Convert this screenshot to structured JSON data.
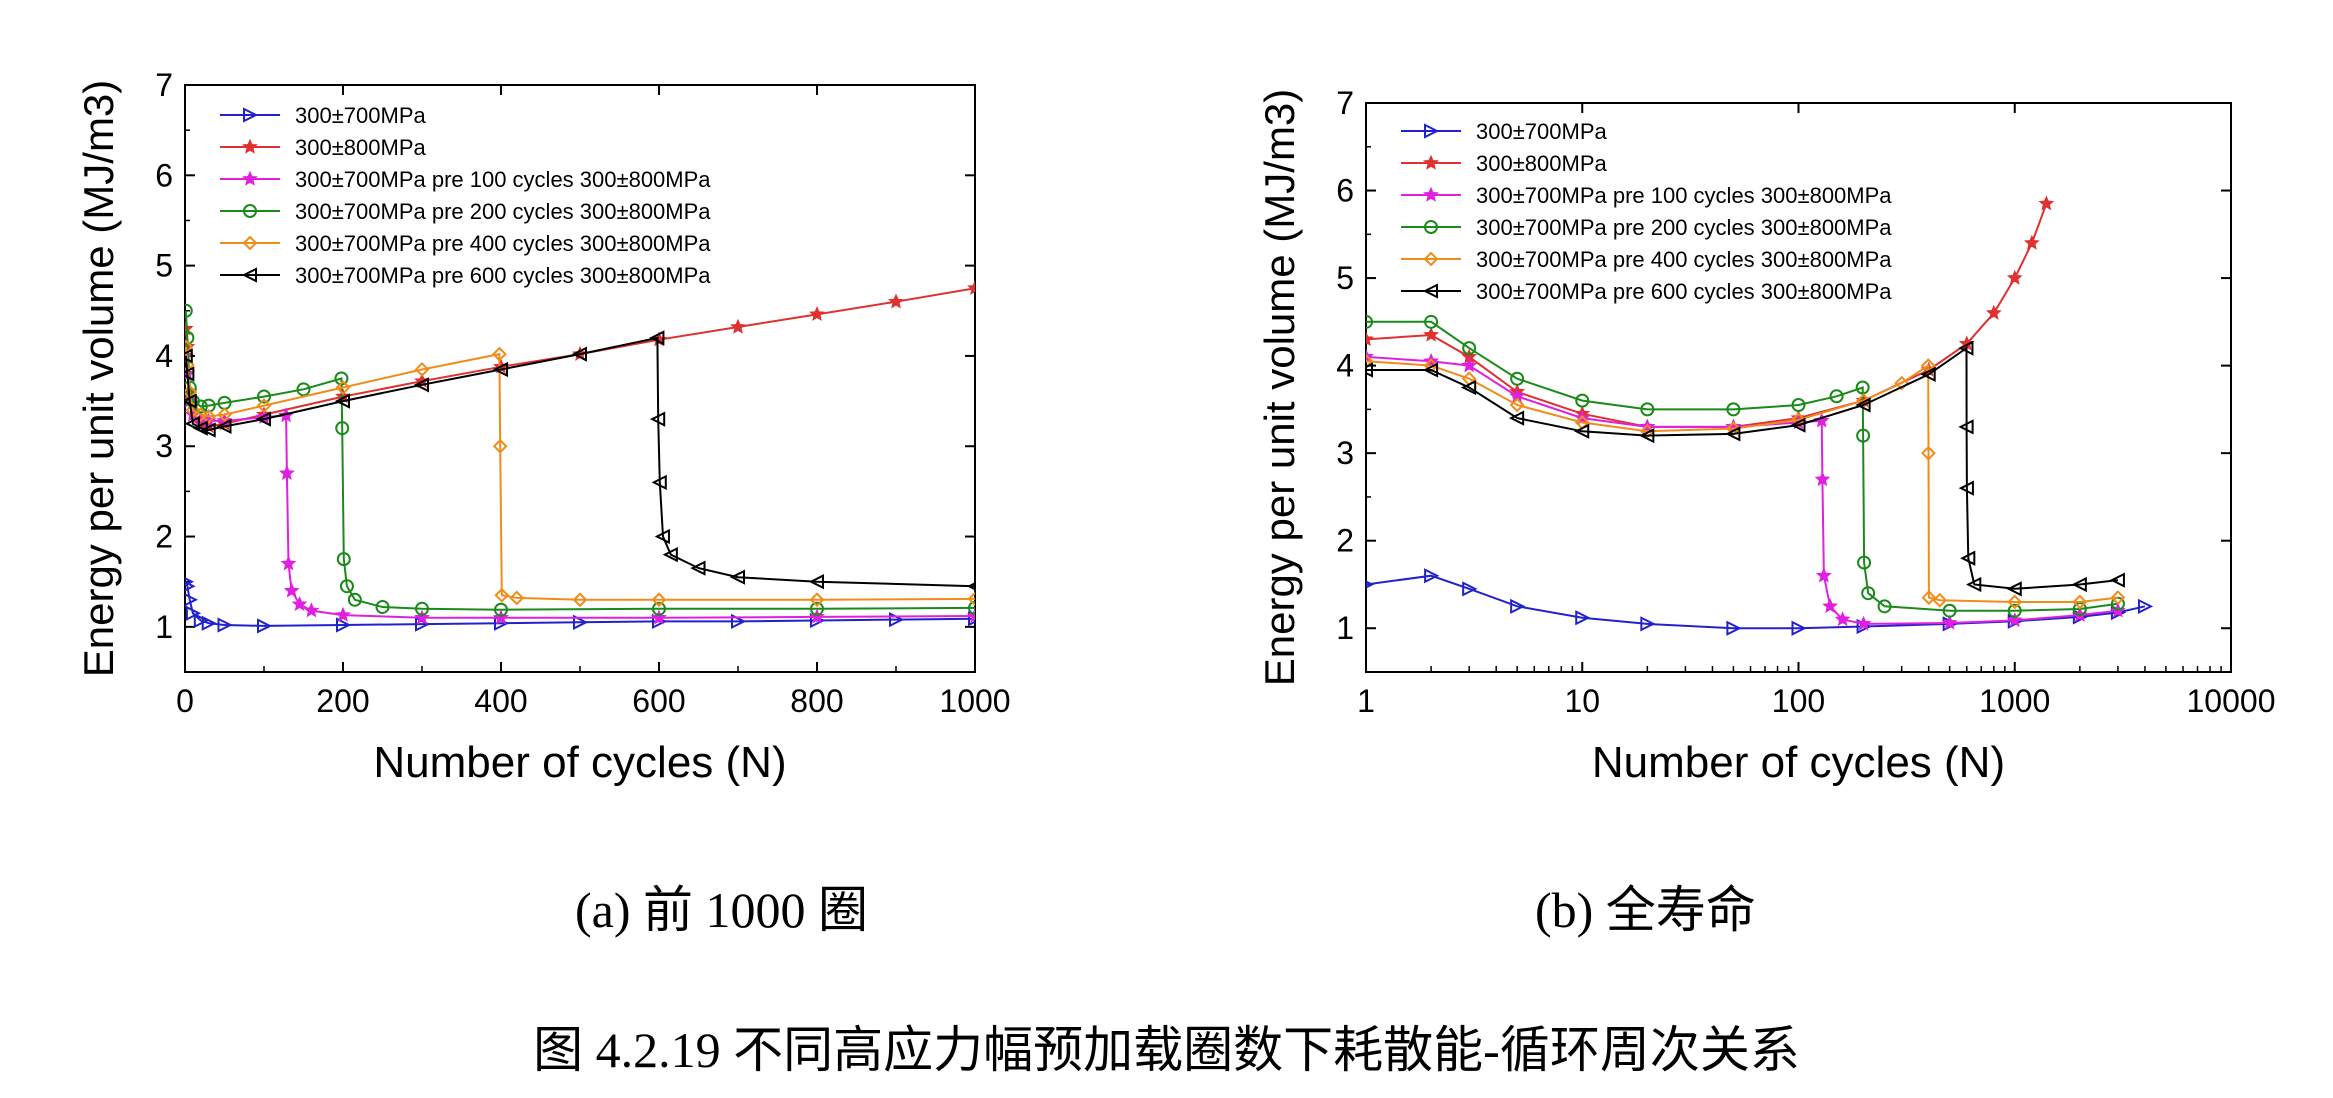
{
  "figure_caption": "图 4.2.19 不同高应力幅预加载圈数下耗散能-循环周次关系",
  "chart_data": [
    {
      "type": "line",
      "subcaption": "(a)  前 1000 圈",
      "xlabel": "Number of cycles (N)",
      "ylabel": "Energy per unit volume (MJ/m3)",
      "x_scale": "linear",
      "xlim": [
        0,
        1000
      ],
      "ylim": [
        0.5,
        7
      ],
      "x_ticks": [
        "0",
        "200",
        "400",
        "600",
        "800",
        "1000"
      ],
      "y_ticks": [
        "1",
        "2",
        "3",
        "4",
        "5",
        "6",
        "7"
      ],
      "legend_position": "top-left",
      "series": [
        {
          "name": "300±700MPa",
          "color": "#2222cc",
          "marker": "triangle-right",
          "x": [
            1,
            3,
            6,
            10,
            20,
            30,
            50,
            100,
            200,
            300,
            400,
            500,
            600,
            700,
            800,
            900,
            1000
          ],
          "y": [
            1.5,
            1.45,
            1.3,
            1.15,
            1.07,
            1.04,
            1.02,
            1.01,
            1.02,
            1.03,
            1.04,
            1.05,
            1.06,
            1.06,
            1.07,
            1.08,
            1.09
          ]
        },
        {
          "name": "300±800MPa",
          "color": "#e03030",
          "marker": "star",
          "x": [
            1,
            3,
            6,
            10,
            20,
            30,
            50,
            100,
            200,
            300,
            400,
            500,
            600,
            700,
            800,
            900,
            1000
          ],
          "y": [
            4.3,
            4.1,
            3.6,
            3.35,
            3.25,
            3.22,
            3.25,
            3.35,
            3.55,
            3.72,
            3.88,
            4.02,
            4.18,
            4.32,
            4.46,
            4.6,
            4.75
          ]
        },
        {
          "name": "300±700MPa pre 100 cycles 300±800MPa",
          "color": "#e020e0",
          "marker": "star-filled",
          "x": [
            1,
            3,
            6,
            10,
            20,
            30,
            50,
            100,
            128,
            129,
            131,
            135,
            145,
            160,
            200,
            300,
            400,
            600,
            800,
            1000
          ],
          "y": [
            4.0,
            3.8,
            3.5,
            3.35,
            3.3,
            3.28,
            3.28,
            3.32,
            3.34,
            2.7,
            1.7,
            1.4,
            1.25,
            1.18,
            1.13,
            1.1,
            1.1,
            1.1,
            1.11,
            1.12
          ]
        },
        {
          "name": "300±700MPa pre 200 cycles 300±800MPa",
          "color": "#1a8a1a",
          "marker": "circle",
          "x": [
            1,
            3,
            6,
            10,
            20,
            30,
            50,
            100,
            150,
            198,
            199,
            201,
            205,
            215,
            250,
            300,
            400,
            600,
            800,
            1000
          ],
          "y": [
            4.5,
            4.2,
            3.65,
            3.5,
            3.44,
            3.45,
            3.48,
            3.55,
            3.63,
            3.75,
            3.2,
            1.75,
            1.45,
            1.3,
            1.22,
            1.2,
            1.19,
            1.2,
            1.2,
            1.21
          ]
        },
        {
          "name": "300±700MPa pre 400 cycles 300±800MPa",
          "color": "#f08c1a",
          "marker": "diamond",
          "x": [
            1,
            3,
            6,
            10,
            20,
            30,
            50,
            100,
            200,
            300,
            398,
            399,
            401,
            420,
            500,
            600,
            800,
            1000
          ],
          "y": [
            4.1,
            3.9,
            3.6,
            3.4,
            3.35,
            3.33,
            3.35,
            3.45,
            3.65,
            3.85,
            4.02,
            3.0,
            1.35,
            1.32,
            1.3,
            1.3,
            1.3,
            1.31
          ]
        },
        {
          "name": "300±700MPa pre 600 cycles 300±800MPa",
          "color": "#000000",
          "marker": "triangle-left",
          "x": [
            1,
            3,
            6,
            10,
            20,
            30,
            50,
            100,
            200,
            300,
            400,
            500,
            598,
            599,
            601,
            605,
            615,
            650,
            700,
            800,
            1000
          ],
          "y": [
            4.0,
            3.8,
            3.5,
            3.25,
            3.2,
            3.18,
            3.22,
            3.3,
            3.5,
            3.68,
            3.85,
            4.02,
            4.2,
            3.3,
            2.6,
            2.0,
            1.8,
            1.65,
            1.55,
            1.5,
            1.45
          ]
        }
      ]
    },
    {
      "type": "line",
      "subcaption": "(b)  全寿命",
      "xlabel": "Number of cycles (N)",
      "ylabel": "Energy per unit volume (MJ/m3)",
      "x_scale": "log",
      "xlim": [
        1,
        10000
      ],
      "ylim": [
        0.5,
        7
      ],
      "x_ticks": [
        "1",
        "10",
        "100",
        "1000",
        "10000"
      ],
      "y_ticks": [
        "1",
        "2",
        "3",
        "4",
        "5",
        "6",
        "7"
      ],
      "legend_position": "top-left",
      "series": [
        {
          "name": "300±700MPa",
          "color": "#2222cc",
          "marker": "triangle-right",
          "x": [
            1,
            2,
            3,
            5,
            10,
            20,
            50,
            100,
            200,
            500,
            1000,
            2000,
            3000,
            4000
          ],
          "y": [
            1.5,
            1.6,
            1.45,
            1.25,
            1.12,
            1.05,
            1.0,
            1.0,
            1.02,
            1.05,
            1.08,
            1.13,
            1.18,
            1.25
          ]
        },
        {
          "name": "300±800MPa",
          "color": "#e03030",
          "marker": "star",
          "x": [
            1,
            2,
            3,
            5,
            10,
            20,
            50,
            100,
            200,
            400,
            600,
            800,
            1000,
            1200,
            1400
          ],
          "y": [
            4.3,
            4.35,
            4.1,
            3.7,
            3.45,
            3.3,
            3.3,
            3.4,
            3.6,
            3.95,
            4.25,
            4.6,
            5.0,
            5.4,
            5.85
          ]
        },
        {
          "name": "300±700MPa pre 100 cycles 300±800MPa",
          "color": "#e020e0",
          "marker": "star-filled",
          "x": [
            1,
            2,
            3,
            5,
            10,
            20,
            50,
            100,
            128,
            129,
            131,
            140,
            160,
            200,
            500,
            1000,
            2000,
            3000
          ],
          "y": [
            4.1,
            4.05,
            4.0,
            3.65,
            3.4,
            3.3,
            3.3,
            3.35,
            3.37,
            2.7,
            1.6,
            1.25,
            1.1,
            1.05,
            1.06,
            1.09,
            1.15,
            1.2
          ]
        },
        {
          "name": "300±700MPa pre 200 cycles 300±800MPa",
          "color": "#1a8a1a",
          "marker": "circle",
          "x": [
            1,
            2,
            3,
            5,
            10,
            20,
            50,
            100,
            150,
            198,
            199,
            201,
            210,
            250,
            500,
            1000,
            2000,
            3000
          ],
          "y": [
            4.5,
            4.5,
            4.2,
            3.85,
            3.6,
            3.5,
            3.5,
            3.55,
            3.65,
            3.75,
            3.2,
            1.75,
            1.4,
            1.25,
            1.2,
            1.2,
            1.22,
            1.28
          ]
        },
        {
          "name": "300±700MPa pre 400 cycles 300±800MPa",
          "color": "#f08c1a",
          "marker": "diamond",
          "x": [
            1,
            2,
            3,
            5,
            10,
            20,
            50,
            100,
            200,
            300,
            398,
            399,
            401,
            450,
            1000,
            2000,
            3000
          ],
          "y": [
            4.05,
            4.0,
            3.85,
            3.55,
            3.35,
            3.25,
            3.28,
            3.38,
            3.6,
            3.8,
            4.0,
            3.0,
            1.35,
            1.32,
            1.3,
            1.3,
            1.35
          ]
        },
        {
          "name": "300±700MPa pre 600 cycles 300±800MPa",
          "color": "#000000",
          "marker": "triangle-left",
          "x": [
            1,
            2,
            3,
            5,
            10,
            20,
            50,
            100,
            200,
            400,
            598,
            599,
            601,
            610,
            650,
            1000,
            2000,
            3000
          ],
          "y": [
            3.95,
            3.95,
            3.75,
            3.4,
            3.25,
            3.2,
            3.22,
            3.32,
            3.55,
            3.9,
            4.2,
            3.3,
            2.6,
            1.8,
            1.5,
            1.45,
            1.5,
            1.55
          ]
        }
      ]
    }
  ]
}
